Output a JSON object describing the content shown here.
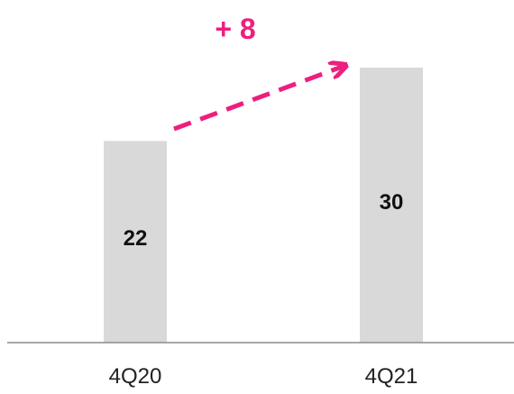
{
  "chart_data": {
    "type": "bar",
    "categories": [
      "4Q20",
      "4Q21"
    ],
    "values": [
      22,
      30
    ],
    "ylim": [
      0,
      30
    ],
    "grid": false,
    "annotation": {
      "text": "+ 8"
    },
    "colors": {
      "bar": "#d9d9d9",
      "axis": "#8c8c8c",
      "accent": "#ee1e7e"
    }
  }
}
